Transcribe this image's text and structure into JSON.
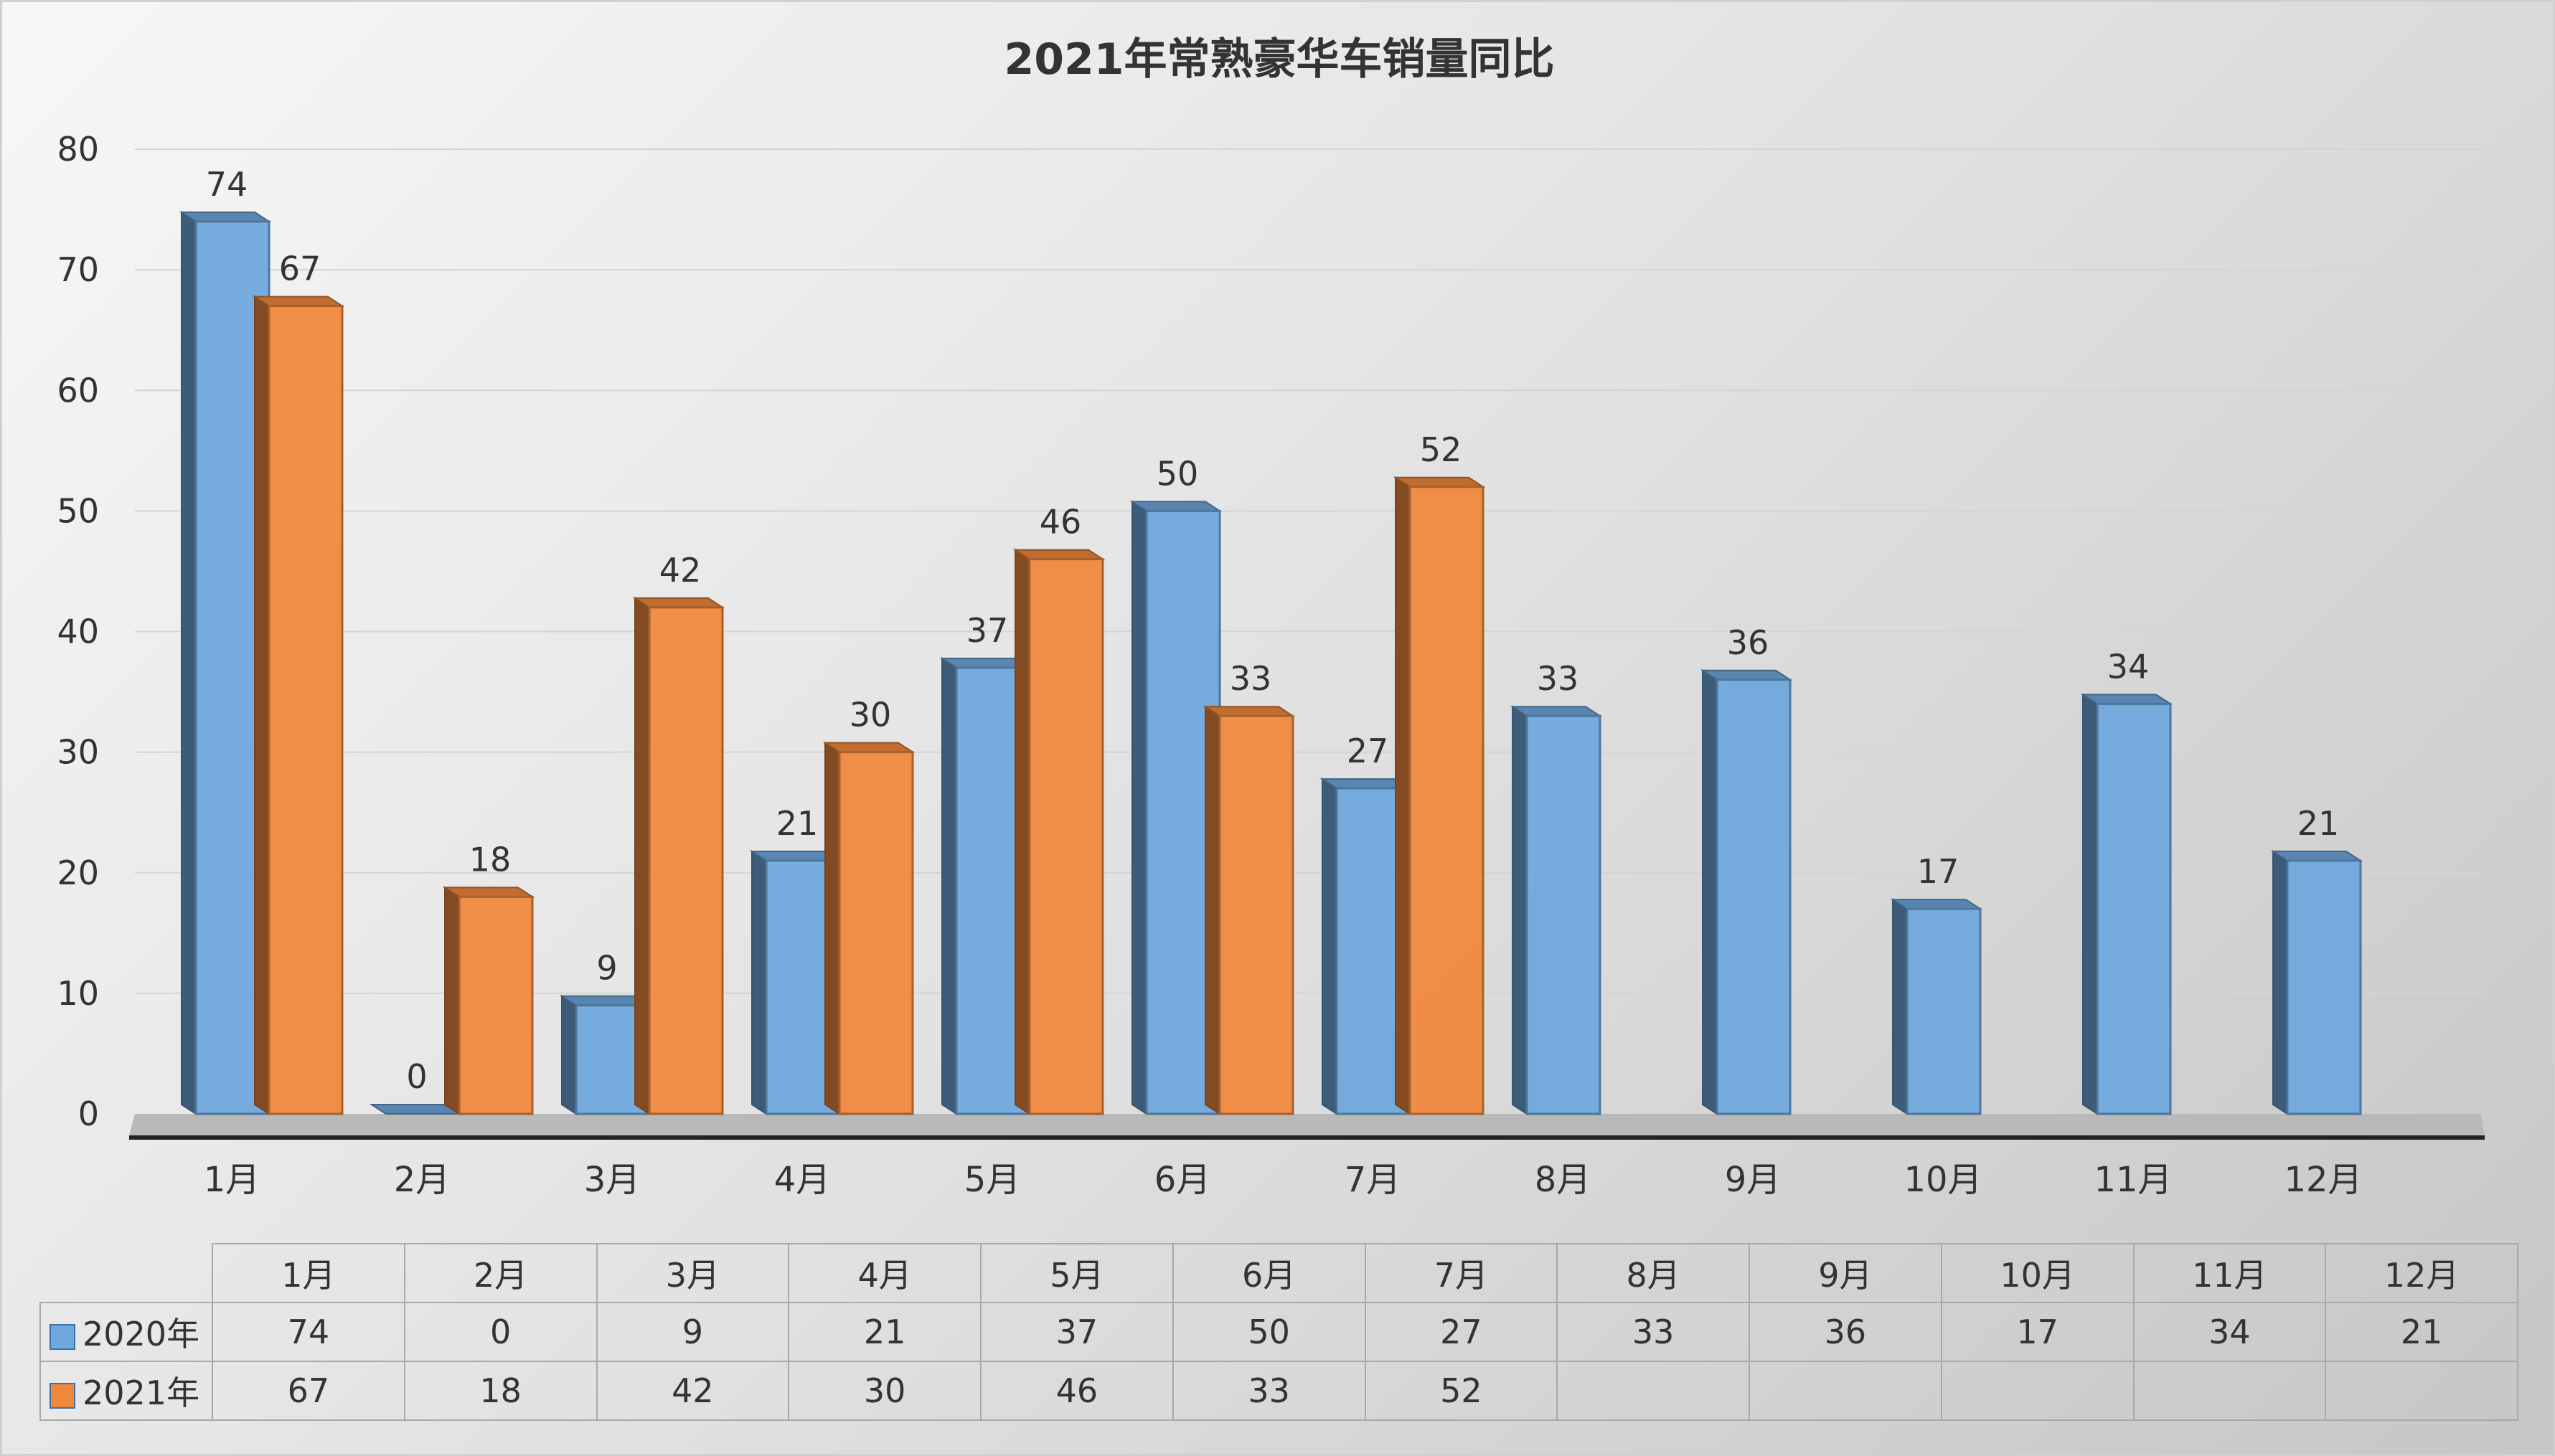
{
  "chart_data": {
    "type": "bar",
    "title": "2021年常熟豪华车销量同比",
    "categories": [
      "1月",
      "2月",
      "3月",
      "4月",
      "5月",
      "6月",
      "7月",
      "8月",
      "9月",
      "10月",
      "11月",
      "12月"
    ],
    "series": [
      {
        "name": "2020年",
        "values": [
          74,
          0,
          9,
          21,
          37,
          50,
          27,
          33,
          36,
          17,
          34,
          21
        ],
        "color": "#6fa8dc"
      },
      {
        "name": "2021年",
        "values": [
          67,
          18,
          42,
          30,
          46,
          33,
          52,
          null,
          null,
          null,
          null,
          null
        ],
        "color": "#f0883e"
      }
    ],
    "ylim": [
      0,
      80
    ],
    "yticks": [
      0,
      10,
      20,
      30,
      40,
      50,
      60,
      70,
      80
    ],
    "xlabel": "",
    "ylabel": "",
    "grid": true,
    "style": "3d-clustered-column",
    "legend": "data-table-below"
  }
}
